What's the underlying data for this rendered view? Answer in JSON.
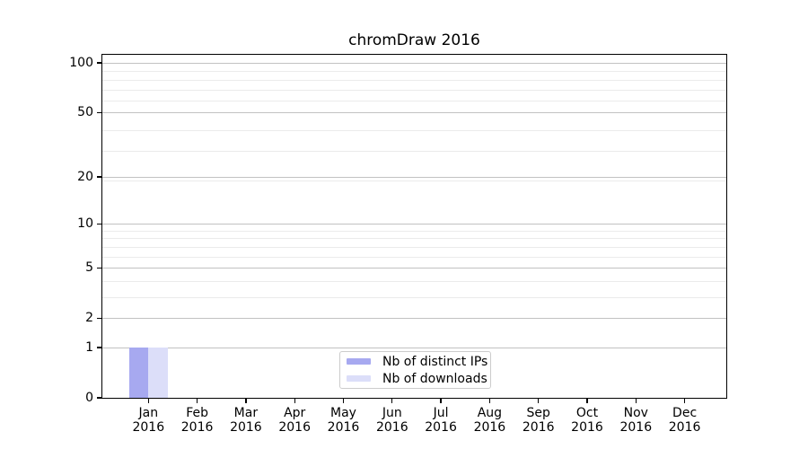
{
  "chart_data": {
    "type": "bar",
    "title": "chromDraw 2016",
    "categories": [
      "Jan",
      "Feb",
      "Mar",
      "Apr",
      "May",
      "Jun",
      "Jul",
      "Aug",
      "Sep",
      "Oct",
      "Nov",
      "Dec"
    ],
    "category_year": "2016",
    "series": [
      {
        "name": "Nb of distinct IPs",
        "color": "#a7a9f0",
        "values": [
          1,
          0,
          0,
          0,
          0,
          0,
          0,
          0,
          0,
          0,
          0,
          0
        ]
      },
      {
        "name": "Nb of downloads",
        "color": "#dcdef9",
        "values": [
          1,
          0,
          0,
          0,
          0,
          0,
          0,
          0,
          0,
          0,
          0,
          0
        ]
      }
    ],
    "y_axis": {
      "scale": "log1p",
      "major_ticks": [
        0,
        1,
        2,
        5,
        10,
        20,
        50,
        100
      ],
      "minor_ticks": [
        3,
        4,
        6,
        7,
        8,
        9,
        19,
        29,
        39,
        59,
        69,
        79,
        89
      ],
      "range_max": 113
    },
    "legend": {
      "position": "lower-center"
    },
    "grid": {
      "horizontal": true,
      "vertical": false
    }
  },
  "colors": {
    "bar_distinct_ips": "#a7a9f0",
    "bar_downloads": "#dcdef9",
    "major_grid": "#c2c2c2",
    "minor_grid": "#ebebeb",
    "axis": "#000000",
    "legend_border": "#cccccc",
    "background": "#ffffff"
  }
}
